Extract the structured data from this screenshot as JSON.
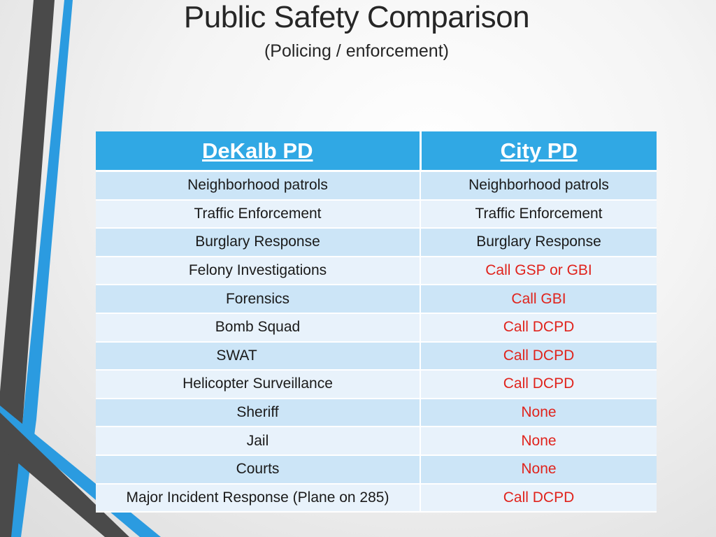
{
  "slide": {
    "title": "Public Safety Comparison",
    "subtitle": "(Policing / enforcement)"
  },
  "colors": {
    "header_bg": "#30a8e4",
    "row_odd": "#cce5f7",
    "row_even": "#e8f2fb",
    "alert_text": "#e0231c",
    "accent_blue": "#2b9be0",
    "accent_gray": "#4a4a4a"
  },
  "table": {
    "headers": [
      "DeKalb PD",
      "City PD"
    ],
    "rows": [
      {
        "dekalb": "Neighborhood patrols",
        "city": "Neighborhood patrols",
        "city_alert": false
      },
      {
        "dekalb": "Traffic Enforcement",
        "city": "Traffic Enforcement",
        "city_alert": false
      },
      {
        "dekalb": "Burglary Response",
        "city": "Burglary Response",
        "city_alert": false
      },
      {
        "dekalb": "Felony Investigations",
        "city": "Call GSP or GBI",
        "city_alert": true
      },
      {
        "dekalb": "Forensics",
        "city": "Call GBI",
        "city_alert": true
      },
      {
        "dekalb": "Bomb Squad",
        "city": "Call DCPD",
        "city_alert": true
      },
      {
        "dekalb": "SWAT",
        "city": "Call DCPD",
        "city_alert": true
      },
      {
        "dekalb": "Helicopter Surveillance",
        "city": "Call DCPD",
        "city_alert": true
      },
      {
        "dekalb": "Sheriff",
        "city": "None",
        "city_alert": true
      },
      {
        "dekalb": "Jail",
        "city": "None",
        "city_alert": true
      },
      {
        "dekalb": "Courts",
        "city": "None",
        "city_alert": true
      },
      {
        "dekalb": "Major Incident Response (Plane on 285)",
        "city": "Call DCPD",
        "city_alert": true
      }
    ]
  }
}
